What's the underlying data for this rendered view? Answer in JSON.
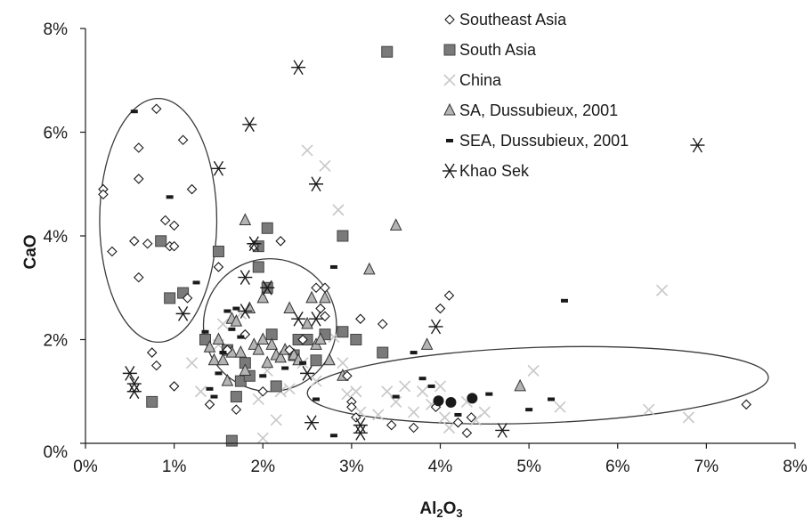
{
  "chart_data": {
    "type": "scatter",
    "title": "",
    "xlabel_main": "Al",
    "xlabel_sub1": "2",
    "xlabel_mid": "O",
    "xlabel_sub2": "3",
    "ylabel": "CaO",
    "xlim": [
      0,
      8
    ],
    "ylim": [
      0,
      8
    ],
    "xticks": [
      "0%",
      "1%",
      "2%",
      "3%",
      "4%",
      "5%",
      "6%",
      "7%",
      "8%"
    ],
    "yticks": [
      "0%",
      "2%",
      "4%",
      "6%",
      "8%"
    ],
    "grid": false,
    "legend_position": "top-right",
    "colors": {
      "axis": "#1a1a1a",
      "south_asia_fill": "#7a7a7a",
      "china": "#c8c8c8",
      "sa_dussubieux_fill": "#b4b4b4",
      "dark": "#1a1a1a",
      "ellipse": "#3a3a3a"
    },
    "series": [
      {
        "name": "Southeast Asia",
        "marker": "diamond-open",
        "points": [
          [
            0.2,
            4.9
          ],
          [
            0.2,
            4.8
          ],
          [
            0.3,
            3.7
          ],
          [
            0.55,
            3.9
          ],
          [
            0.6,
            5.7
          ],
          [
            0.6,
            5.1
          ],
          [
            0.6,
            3.2
          ],
          [
            0.7,
            3.85
          ],
          [
            0.75,
            1.75
          ],
          [
            0.8,
            6.45
          ],
          [
            0.8,
            1.5
          ],
          [
            0.9,
            4.3
          ],
          [
            0.95,
            3.8
          ],
          [
            1.0,
            4.2
          ],
          [
            1.0,
            3.8
          ],
          [
            1.0,
            1.1
          ],
          [
            1.1,
            5.85
          ],
          [
            1.15,
            2.8
          ],
          [
            1.2,
            4.9
          ],
          [
            1.4,
            0.75
          ],
          [
            1.5,
            3.4
          ],
          [
            1.6,
            1.8
          ],
          [
            1.7,
            0.65
          ],
          [
            1.8,
            2.1
          ],
          [
            1.9,
            3.8
          ],
          [
            2.0,
            1.0
          ],
          [
            2.2,
            3.9
          ],
          [
            2.3,
            1.8
          ],
          [
            2.45,
            2.0
          ],
          [
            2.6,
            3.0
          ],
          [
            2.65,
            2.6
          ],
          [
            2.7,
            2.45
          ],
          [
            2.7,
            3.0
          ],
          [
            2.95,
            1.3
          ],
          [
            3.0,
            0.8
          ],
          [
            3.0,
            0.7
          ],
          [
            3.05,
            0.5
          ],
          [
            3.1,
            2.4
          ],
          [
            3.35,
            2.3
          ],
          [
            3.45,
            0.35
          ],
          [
            3.7,
            0.3
          ],
          [
            3.95,
            0.7
          ],
          [
            4.0,
            2.6
          ],
          [
            4.1,
            2.85
          ],
          [
            4.2,
            0.4
          ],
          [
            4.3,
            0.2
          ],
          [
            4.35,
            0.5
          ],
          [
            7.45,
            0.75
          ]
        ]
      },
      {
        "name": "South Asia",
        "marker": "square-filled",
        "points": [
          [
            0.75,
            0.8
          ],
          [
            0.85,
            3.9
          ],
          [
            0.95,
            2.8
          ],
          [
            1.1,
            2.9
          ],
          [
            1.35,
            2.0
          ],
          [
            1.5,
            3.7
          ],
          [
            1.6,
            1.8
          ],
          [
            1.65,
            0.05
          ],
          [
            1.7,
            0.9
          ],
          [
            1.75,
            1.2
          ],
          [
            1.8,
            1.55
          ],
          [
            1.85,
            1.3
          ],
          [
            1.95,
            3.4
          ],
          [
            1.95,
            3.8
          ],
          [
            2.05,
            4.15
          ],
          [
            2.05,
            3.0
          ],
          [
            2.1,
            2.1
          ],
          [
            2.15,
            1.1
          ],
          [
            2.35,
            1.7
          ],
          [
            2.4,
            2.0
          ],
          [
            2.5,
            2.0
          ],
          [
            2.6,
            1.6
          ],
          [
            2.7,
            2.1
          ],
          [
            2.9,
            4.0
          ],
          [
            2.9,
            2.15
          ],
          [
            3.05,
            2.0
          ],
          [
            3.35,
            1.75
          ],
          [
            3.4,
            7.55
          ]
        ]
      },
      {
        "name": "China",
        "marker": "x",
        "points": [
          [
            1.2,
            1.55
          ],
          [
            1.3,
            1.0
          ],
          [
            1.5,
            1.9
          ],
          [
            1.55,
            2.3
          ],
          [
            1.75,
            2.5
          ],
          [
            1.95,
            0.85
          ],
          [
            2.0,
            0.1
          ],
          [
            2.05,
            1.4
          ],
          [
            2.15,
            0.45
          ],
          [
            2.2,
            1.0
          ],
          [
            2.3,
            1.05
          ],
          [
            2.45,
            1.55
          ],
          [
            2.5,
            5.65
          ],
          [
            2.6,
            1.2
          ],
          [
            2.7,
            5.35
          ],
          [
            2.8,
            2.05
          ],
          [
            2.85,
            4.5
          ],
          [
            2.9,
            1.55
          ],
          [
            2.95,
            0.95
          ],
          [
            3.05,
            1.0
          ],
          [
            3.1,
            0.6
          ],
          [
            3.3,
            0.55
          ],
          [
            3.4,
            1.0
          ],
          [
            3.5,
            0.8
          ],
          [
            3.6,
            1.1
          ],
          [
            3.7,
            0.6
          ],
          [
            3.8,
            1.0
          ],
          [
            3.9,
            0.75
          ],
          [
            4.0,
            1.1
          ],
          [
            4.05,
            0.5
          ],
          [
            4.1,
            0.3
          ],
          [
            4.3,
            0.8
          ],
          [
            4.4,
            0.45
          ],
          [
            4.5,
            0.6
          ],
          [
            5.05,
            1.4
          ],
          [
            5.35,
            0.7
          ],
          [
            6.35,
            0.65
          ],
          [
            6.5,
            2.95
          ],
          [
            6.8,
            0.5
          ]
        ]
      },
      {
        "name": "SA, Dussubieux, 2001",
        "marker": "triangle-filled",
        "points": [
          [
            1.4,
            1.85
          ],
          [
            1.45,
            1.6
          ],
          [
            1.5,
            2.0
          ],
          [
            1.55,
            1.6
          ],
          [
            1.6,
            1.2
          ],
          [
            1.65,
            2.4
          ],
          [
            1.65,
            1.75
          ],
          [
            1.7,
            2.35
          ],
          [
            1.75,
            1.75
          ],
          [
            1.8,
            4.3
          ],
          [
            1.8,
            1.4
          ],
          [
            1.85,
            2.6
          ],
          [
            1.9,
            1.9
          ],
          [
            1.95,
            1.8
          ],
          [
            2.0,
            2.0
          ],
          [
            2.0,
            2.8
          ],
          [
            2.05,
            1.55
          ],
          [
            2.1,
            1.9
          ],
          [
            2.15,
            1.7
          ],
          [
            2.2,
            1.65
          ],
          [
            2.25,
            1.8
          ],
          [
            2.3,
            2.6
          ],
          [
            2.35,
            1.7
          ],
          [
            2.4,
            1.6
          ],
          [
            2.5,
            2.3
          ],
          [
            2.55,
            2.8
          ],
          [
            2.6,
            1.9
          ],
          [
            2.65,
            2.0
          ],
          [
            2.7,
            2.8
          ],
          [
            2.75,
            1.6
          ],
          [
            2.9,
            1.3
          ],
          [
            3.2,
            3.35
          ],
          [
            3.5,
            4.2
          ],
          [
            3.85,
            1.9
          ],
          [
            4.9,
            1.1
          ]
        ]
      },
      {
        "name": "SEA, Dussubieux, 2001",
        "marker": "dash",
        "points": [
          [
            0.55,
            6.4
          ],
          [
            0.95,
            4.75
          ],
          [
            1.25,
            3.1
          ],
          [
            1.35,
            2.15
          ],
          [
            1.4,
            1.05
          ],
          [
            1.45,
            0.9
          ],
          [
            1.5,
            1.35
          ],
          [
            1.55,
            1.75
          ],
          [
            1.6,
            2.55
          ],
          [
            1.65,
            2.2
          ],
          [
            1.7,
            2.6
          ],
          [
            1.75,
            2.05
          ],
          [
            2.0,
            1.3
          ],
          [
            2.25,
            1.45
          ],
          [
            2.45,
            1.55
          ],
          [
            2.6,
            0.85
          ],
          [
            2.8,
            3.4
          ],
          [
            2.8,
            0.15
          ],
          [
            3.5,
            0.9
          ],
          [
            3.7,
            1.75
          ],
          [
            3.8,
            1.25
          ],
          [
            3.9,
            1.1
          ],
          [
            4.2,
            0.55
          ],
          [
            4.55,
            0.95
          ],
          [
            5.0,
            0.65
          ],
          [
            5.25,
            0.85
          ],
          [
            5.4,
            2.75
          ]
        ]
      },
      {
        "name": "Khao Sek",
        "marker": "asterisk",
        "points": [
          [
            0.5,
            1.35
          ],
          [
            0.55,
            1.15
          ],
          [
            0.55,
            1.0
          ],
          [
            1.1,
            2.5
          ],
          [
            1.5,
            5.3
          ],
          [
            1.8,
            3.2
          ],
          [
            1.8,
            2.55
          ],
          [
            1.85,
            6.15
          ],
          [
            1.9,
            3.85
          ],
          [
            2.05,
            3.0
          ],
          [
            2.4,
            7.25
          ],
          [
            2.4,
            2.4
          ],
          [
            2.5,
            1.35
          ],
          [
            2.55,
            0.4
          ],
          [
            2.6,
            5.0
          ],
          [
            2.6,
            2.4
          ],
          [
            3.1,
            0.35
          ],
          [
            3.1,
            0.2
          ],
          [
            3.95,
            2.25
          ],
          [
            4.7,
            0.25
          ],
          [
            6.9,
            5.75
          ]
        ]
      },
      {
        "name": "",
        "marker": "circle-filled",
        "points": [
          [
            3.98,
            0.82
          ],
          [
            4.12,
            0.79
          ],
          [
            4.36,
            0.87
          ]
        ]
      }
    ],
    "ellipses": [
      {
        "cx": 0.82,
        "cy": 4.3,
        "rx": 0.66,
        "ry": 2.35,
        "angle": 0
      },
      {
        "cx": 2.08,
        "cy": 2.28,
        "rx": 0.75,
        "ry": 1.28,
        "angle": 0
      },
      {
        "cx": 5.1,
        "cy": 1.12,
        "rx": 2.6,
        "ry": 0.73,
        "angle": 2
      }
    ]
  }
}
